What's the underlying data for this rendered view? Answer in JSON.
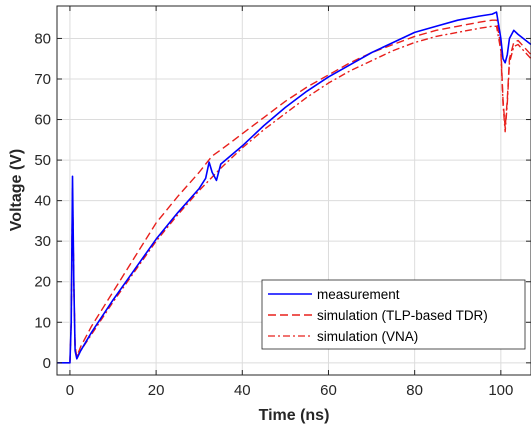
{
  "chart_data": {
    "type": "line",
    "xlabel": "Time (ns)",
    "ylabel": "Voltage (V)",
    "xlim": [
      -3,
      107
    ],
    "ylim": [
      -3,
      88
    ],
    "xticks": [
      0,
      20,
      40,
      60,
      80,
      100
    ],
    "yticks": [
      0,
      10,
      20,
      30,
      40,
      50,
      60,
      70,
      80
    ],
    "grid": true,
    "legend_position": "bottom-right",
    "series": [
      {
        "name": "measurement",
        "color": "#0000ff",
        "style": "solid",
        "points": [
          [
            -3,
            0
          ],
          [
            0,
            0
          ],
          [
            0.3,
            10
          ],
          [
            0.6,
            46
          ],
          [
            0.9,
            20
          ],
          [
            1.2,
            3
          ],
          [
            1.6,
            1
          ],
          [
            2.5,
            3
          ],
          [
            5,
            7.5
          ],
          [
            10,
            15.5
          ],
          [
            15,
            23
          ],
          [
            20,
            30.5
          ],
          [
            25,
            37
          ],
          [
            30,
            43
          ],
          [
            31.5,
            45.5
          ],
          [
            32.3,
            49.5
          ],
          [
            33,
            47
          ],
          [
            34,
            45
          ],
          [
            35,
            49
          ],
          [
            40,
            53.5
          ],
          [
            45,
            58.5
          ],
          [
            50,
            63
          ],
          [
            55,
            67
          ],
          [
            60,
            70.5
          ],
          [
            65,
            73.5
          ],
          [
            70,
            76.5
          ],
          [
            75,
            79
          ],
          [
            80,
            81.5
          ],
          [
            85,
            83
          ],
          [
            90,
            84.5
          ],
          [
            95,
            85.5
          ],
          [
            98,
            86
          ],
          [
            99,
            86.5
          ],
          [
            100,
            80
          ],
          [
            100.5,
            75
          ],
          [
            101,
            74
          ],
          [
            101.5,
            76
          ],
          [
            102,
            80
          ],
          [
            103,
            82
          ],
          [
            104,
            81
          ],
          [
            107,
            78.5
          ]
        ]
      },
      {
        "name": "simulation (TLP-based TDR)",
        "color": "#e8201c",
        "style": "dashed",
        "points": [
          [
            -3,
            0
          ],
          [
            0,
            0
          ],
          [
            0.3,
            10
          ],
          [
            0.6,
            43
          ],
          [
            0.9,
            20
          ],
          [
            1.2,
            4
          ],
          [
            1.6,
            1.5
          ],
          [
            2.5,
            4
          ],
          [
            5,
            9
          ],
          [
            10,
            17.5
          ],
          [
            15,
            26
          ],
          [
            20,
            34.5
          ],
          [
            25,
            41
          ],
          [
            30,
            47
          ],
          [
            33,
            51
          ],
          [
            35,
            52.5
          ],
          [
            40,
            56.5
          ],
          [
            45,
            60.5
          ],
          [
            50,
            64.5
          ],
          [
            55,
            68
          ],
          [
            60,
            71
          ],
          [
            65,
            74
          ],
          [
            70,
            76.5
          ],
          [
            75,
            78.5
          ],
          [
            80,
            80.5
          ],
          [
            85,
            82
          ],
          [
            90,
            83
          ],
          [
            95,
            84
          ],
          [
            98,
            84.5
          ],
          [
            99,
            84.5
          ],
          [
            100,
            78
          ],
          [
            100.5,
            65
          ],
          [
            101,
            58
          ],
          [
            101.5,
            65
          ],
          [
            102,
            75
          ],
          [
            103,
            79
          ],
          [
            104,
            79.5
          ],
          [
            107,
            76
          ]
        ]
      },
      {
        "name": "simulation (VNA)",
        "color": "#e8201c",
        "style": "dashdot",
        "points": [
          [
            -3,
            0
          ],
          [
            0,
            0
          ],
          [
            0.3,
            10
          ],
          [
            0.6,
            42
          ],
          [
            0.9,
            20
          ],
          [
            1.2,
            4
          ],
          [
            1.6,
            1.5
          ],
          [
            2.5,
            3
          ],
          [
            5,
            7
          ],
          [
            10,
            15
          ],
          [
            15,
            22.5
          ],
          [
            20,
            30
          ],
          [
            25,
            36.5
          ],
          [
            30,
            42.5
          ],
          [
            35,
            48
          ],
          [
            40,
            53
          ],
          [
            45,
            57.5
          ],
          [
            50,
            61.5
          ],
          [
            55,
            65.5
          ],
          [
            60,
            69
          ],
          [
            65,
            72
          ],
          [
            70,
            74.5
          ],
          [
            75,
            77
          ],
          [
            80,
            79
          ],
          [
            85,
            80.5
          ],
          [
            90,
            81.5
          ],
          [
            95,
            82.5
          ],
          [
            98,
            83
          ],
          [
            99,
            83
          ],
          [
            100,
            77
          ],
          [
            100.5,
            64
          ],
          [
            101,
            57
          ],
          [
            101.5,
            64
          ],
          [
            102,
            74
          ],
          [
            103,
            78
          ],
          [
            104,
            78.5
          ],
          [
            107,
            75
          ]
        ]
      }
    ]
  }
}
